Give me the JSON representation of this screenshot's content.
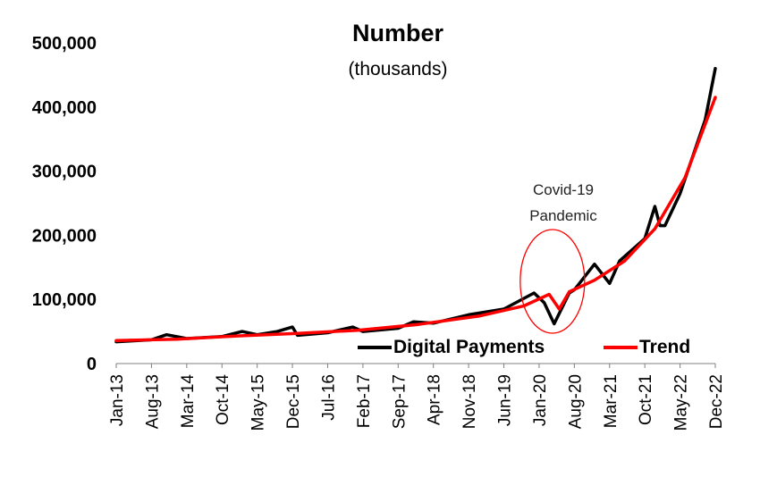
{
  "chart_data": {
    "type": "line",
    "title": "Number",
    "subtitle": "(thousands)",
    "xlabel": "",
    "ylabel": "",
    "ylim": [
      0,
      500000
    ],
    "yticks": [
      "0",
      "100,000",
      "200,000",
      "300,000",
      "400,000",
      "500,000"
    ],
    "yticks_values": [
      0,
      100000,
      200000,
      300000,
      400000,
      500000
    ],
    "xticks": [
      "Jan-13",
      "Aug-13",
      "Mar-14",
      "Oct-14",
      "May-15",
      "Dec-15",
      "Jul-16",
      "Feb-17",
      "Sep-17",
      "Apr-18",
      "Nov-18",
      "Jun-19",
      "Jan-20",
      "Aug-20",
      "Mar-21",
      "Oct-21",
      "May-22",
      "Dec-22"
    ],
    "x_start": "Jan-13",
    "x_end": "Dec-22",
    "grid": false,
    "legend_position": "bottom-right",
    "series": [
      {
        "name": "Digital Payments",
        "color": "#000000",
        "points": [
          [
            "Jan-13",
            34000
          ],
          [
            "Aug-13",
            37000
          ],
          [
            "Nov-13",
            45000
          ],
          [
            "Mar-14",
            39000
          ],
          [
            "Oct-14",
            42000
          ],
          [
            "Feb-15",
            50000
          ],
          [
            "May-15",
            45000
          ],
          [
            "Sep-15",
            50000
          ],
          [
            "Dec-15",
            57000
          ],
          [
            "Jan-16",
            44000
          ],
          [
            "Jul-16",
            48000
          ],
          [
            "Dec-16",
            57000
          ],
          [
            "Feb-17",
            50000
          ],
          [
            "Sep-17",
            55000
          ],
          [
            "Dec-17",
            65000
          ],
          [
            "Apr-18",
            63000
          ],
          [
            "Nov-18",
            76000
          ],
          [
            "Jun-19",
            85000
          ],
          [
            "Dec-19",
            110000
          ],
          [
            "Feb-20",
            95000
          ],
          [
            "Apr-20",
            62000
          ],
          [
            "Jul-20",
            110000
          ],
          [
            "Aug-20",
            115000
          ],
          [
            "Dec-20",
            155000
          ],
          [
            "Mar-21",
            125000
          ],
          [
            "May-21",
            160000
          ],
          [
            "Oct-21",
            195000
          ],
          [
            "Dec-21",
            245000
          ],
          [
            "Jan-22",
            215000
          ],
          [
            "Feb-22",
            215000
          ],
          [
            "May-22",
            265000
          ],
          [
            "Oct-22",
            380000
          ],
          [
            "Dec-22",
            460000
          ]
        ]
      },
      {
        "name": "Trend",
        "color": "#ff0000",
        "points": [
          [
            "Jan-13",
            36000
          ],
          [
            "Jan-14",
            38000
          ],
          [
            "Jan-15",
            43000
          ],
          [
            "Jan-16",
            47000
          ],
          [
            "Jan-17",
            52000
          ],
          [
            "Jan-18",
            61000
          ],
          [
            "Jan-19",
            74000
          ],
          [
            "Oct-19",
            90000
          ],
          [
            "Mar-20",
            108000
          ],
          [
            "May-20",
            85000
          ],
          [
            "Jul-20",
            112000
          ],
          [
            "Dec-20",
            130000
          ],
          [
            "Jun-21",
            160000
          ],
          [
            "Dec-21",
            210000
          ],
          [
            "Jun-22",
            290000
          ],
          [
            "Dec-22",
            415000
          ]
        ]
      }
    ],
    "annotations": [
      {
        "text_lines": [
          "Covid-19",
          "Pandemic"
        ],
        "target": "Apr-20"
      }
    ]
  }
}
